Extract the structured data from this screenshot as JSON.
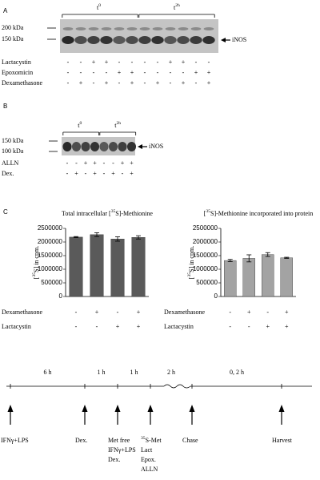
{
  "panels": {
    "a": {
      "letter": "A",
      "time_labels": [
        {
          "t": "t",
          "sub": "0"
        },
        {
          "t": "t",
          "sub": "2h"
        }
      ],
      "markers": [
        "200 kDa",
        "150 kDa"
      ],
      "band_label": "iNOS",
      "rows": [
        {
          "label": "Lactacystin",
          "signs": [
            "-",
            "-",
            "+",
            "+",
            "-",
            "-",
            "-",
            "-",
            "+",
            "+",
            "-",
            "-"
          ]
        },
        {
          "label": "Epoxomicin",
          "signs": [
            "-",
            "-",
            "-",
            "-",
            "+",
            "+",
            "-",
            "-",
            "-",
            "-",
            "+",
            "+"
          ]
        },
        {
          "label": "Dexamethasone",
          "signs": [
            "-",
            "+",
            "-",
            "+",
            "-",
            "+",
            "-",
            "+",
            "-",
            "+",
            "-",
            "+"
          ]
        }
      ]
    },
    "b": {
      "letter": "B",
      "time_labels": [
        {
          "t": "t",
          "sub": "0"
        },
        {
          "t": "t",
          "sub": "2h"
        }
      ],
      "markers": [
        "150 kDa",
        "100 kDa"
      ],
      "band_label": "iNOS",
      "rows": [
        {
          "label": "ALLN",
          "signs": [
            "-",
            "-",
            "+",
            "+",
            "-",
            "-",
            "+",
            "+"
          ]
        },
        {
          "label": "Dex.",
          "signs": [
            "-",
            "+",
            "-",
            "+",
            "-",
            "+",
            "-",
            "+"
          ]
        }
      ]
    },
    "c": {
      "letter": "C"
    }
  },
  "chart_data": [
    {
      "type": "bar",
      "title_parts": [
        "Total intracellular [",
        "35",
        "S]-Methionine"
      ],
      "ylabel_parts": [
        "[",
        "35",
        "S] in cpm."
      ],
      "values": [
        2180000,
        2270000,
        2110000,
        2170000
      ],
      "errors": [
        20000,
        70000,
        80000,
        60000
      ],
      "color": "#5a5a5a",
      "ylim": [
        0,
        2500000
      ],
      "yticks": [
        0,
        500000,
        1000000,
        1500000,
        2000000,
        2500000
      ],
      "grid": false,
      "conditions": [
        {
          "label": "Dexamethasone",
          "signs": [
            "-",
            "+",
            "-",
            "+"
          ]
        },
        {
          "label": "Lactacystin",
          "signs": [
            "-",
            "-",
            "+",
            "+"
          ]
        }
      ]
    },
    {
      "type": "bar",
      "title_parts": [
        "[",
        "35",
        "S]-Methionine incorporated into protein"
      ],
      "ylabel_parts": [
        "[",
        "35",
        "S] in cpm."
      ],
      "values": [
        1320000,
        1400000,
        1540000,
        1420000
      ],
      "errors": [
        40000,
        130000,
        70000,
        20000
      ],
      "color": "#a3a3a3",
      "ylim": [
        0,
        2500000
      ],
      "yticks": [
        0,
        500000,
        1000000,
        1500000,
        2000000,
        2500000
      ],
      "grid": false,
      "conditions": [
        {
          "label": "Dexamethasone",
          "signs": [
            "-",
            "+",
            "-",
            "+"
          ]
        },
        {
          "label": "Lactacystin",
          "signs": [
            "-",
            "-",
            "+",
            "+"
          ]
        }
      ]
    }
  ],
  "timeline": {
    "intervals": [
      "6 h",
      "1 h",
      "1 h",
      "2 h",
      "0, 2 h"
    ],
    "events": [
      {
        "lines": [
          "IFNγ+LPS"
        ]
      },
      {
        "lines": [
          "Dex."
        ]
      },
      {
        "lines": [
          "Met free",
          "IFNγ+LPS",
          "Dex."
        ]
      },
      {
        "sup": "35",
        "lines": [
          "S-Met",
          "Lact",
          "Epox.",
          "ALLN"
        ]
      },
      {
        "lines": [
          "Chase"
        ]
      },
      {
        "lines": [
          "Harvest"
        ]
      }
    ]
  }
}
